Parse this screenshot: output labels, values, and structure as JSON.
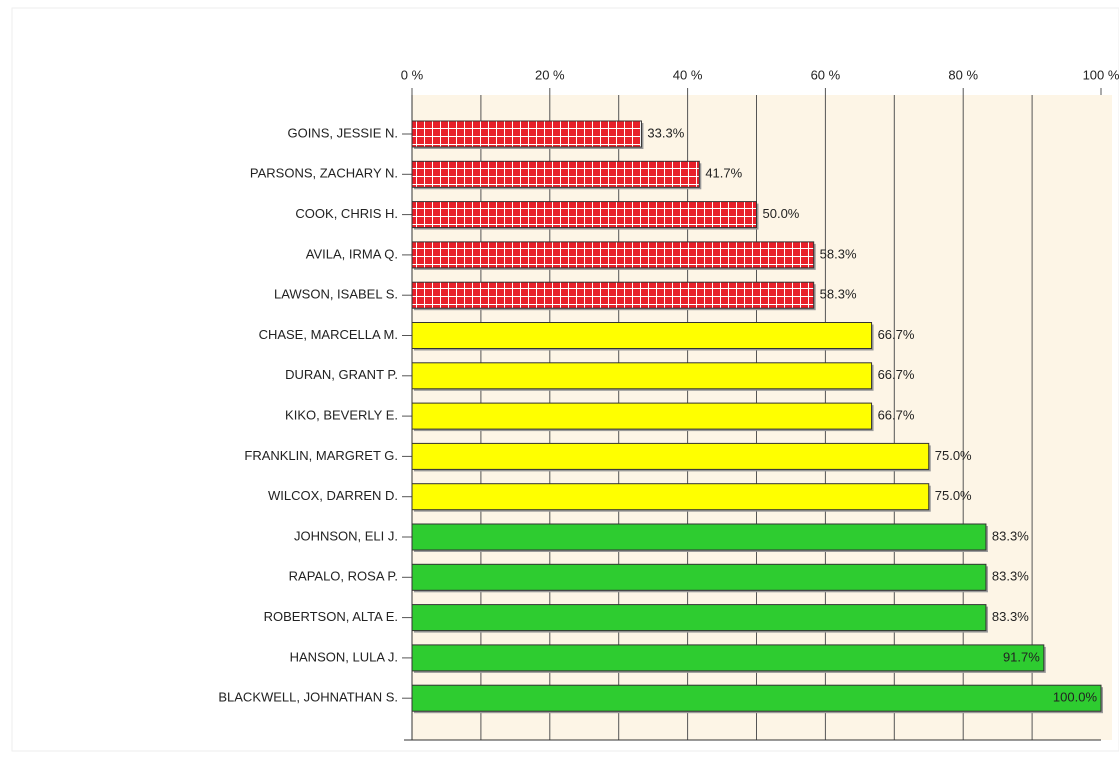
{
  "chart_data": {
    "type": "hbar",
    "categories": [
      "GOINS, JESSIE N.",
      "PARSONS, ZACHARY N.",
      "COOK, CHRIS H.",
      "AVILA, IRMA Q.",
      "LAWSON, ISABEL S.",
      "CHASE, MARCELLA M.",
      "DURAN, GRANT P.",
      "KIKO, BEVERLY E.",
      "FRANKLIN, MARGRET G.",
      "WILCOX, DARREN D.",
      "JOHNSON, ELI J.",
      "RAPALO, ROSA P.",
      "ROBERTSON, ALTA E.",
      "HANSON, LULA J.",
      "BLACKWELL, JOHNATHAN S."
    ],
    "values": [
      33.3,
      41.7,
      50.0,
      58.3,
      58.3,
      66.7,
      66.7,
      66.7,
      75.0,
      75.0,
      83.3,
      83.3,
      83.3,
      91.7,
      100.0
    ],
    "value_labels": [
      "33.3%",
      "41.7%",
      "50.0%",
      "58.3%",
      "58.3%",
      "66.7%",
      "66.7%",
      "66.7%",
      "75.0%",
      "75.0%",
      "83.3%",
      "83.3%",
      "83.3%",
      "91.7%",
      "100.0%"
    ],
    "colors": [
      "#e8202a",
      "#e8202a",
      "#e8202a",
      "#e8202a",
      "#e8202a",
      "#ffff00",
      "#ffff00",
      "#ffff00",
      "#ffff00",
      "#ffff00",
      "#2ecc30",
      "#2ecc30",
      "#2ecc30",
      "#2ecc30",
      "#2ecc30"
    ],
    "xlim": [
      0,
      100
    ],
    "xticks": [
      {
        "value": 0,
        "label": "0 %"
      },
      {
        "value": 20,
        "label": "20 %"
      },
      {
        "value": 40,
        "label": "40 %"
      },
      {
        "value": 60,
        "label": "60 %"
      },
      {
        "value": 80,
        "label": "80 %"
      },
      {
        "value": 100,
        "label": "100 %"
      }
    ],
    "xgrid": [
      10,
      20,
      30,
      40,
      50,
      60,
      70,
      80,
      90
    ],
    "grid": true
  }
}
